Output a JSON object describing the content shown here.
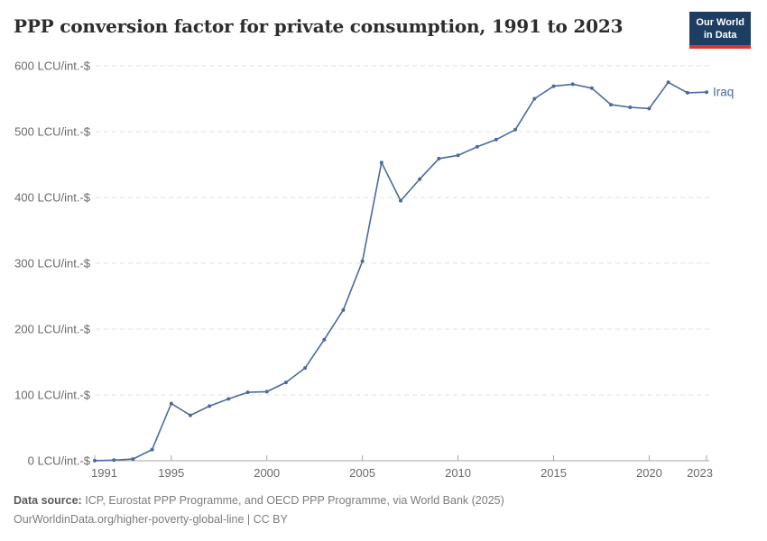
{
  "header": {
    "title": "PPP conversion factor for private consumption, 1991 to 2023",
    "logo": {
      "line1": "Our World",
      "line2": "in Data"
    }
  },
  "chart_data": {
    "type": "line",
    "title": "PPP conversion factor for private consumption, 1991 to 2023",
    "xlabel": "",
    "ylabel": "",
    "xlim": [
      1991,
      2023
    ],
    "ylim": [
      0,
      600
    ],
    "x_ticks": [
      1991,
      1995,
      2000,
      2005,
      2010,
      2015,
      2020,
      2023
    ],
    "y_ticks": [
      0,
      100,
      200,
      300,
      400,
      500,
      600
    ],
    "y_tick_suffix": " LCU/int.-$",
    "grid": "horizontal-dashed",
    "legend_position": "end-of-line-label",
    "series": [
      {
        "name": "Iraq",
        "color": "#4C6A9C",
        "x": [
          1991,
          1992,
          1993,
          1994,
          1995,
          1996,
          1997,
          1998,
          1999,
          2000,
          2001,
          2002,
          2003,
          2004,
          2005,
          2006,
          2007,
          2008,
          2009,
          2010,
          2011,
          2012,
          2013,
          2014,
          2015,
          2016,
          2017,
          2018,
          2019,
          2020,
          2021,
          2022,
          2023
        ],
        "values": [
          0.2,
          0.9,
          2.6,
          17,
          87,
          69,
          83,
          94,
          104,
          105,
          119,
          141,
          184,
          229,
          303,
          453,
          395,
          428,
          459,
          464,
          477,
          488,
          503,
          550,
          569,
          572,
          566,
          541,
          537,
          535,
          575,
          559,
          560
        ]
      }
    ]
  },
  "footer": {
    "source_label": "Data source:",
    "source_text": "ICP, Eurostat PPP Programme, and OECD PPP Programme, via World Bank (2025)",
    "attribution": "OurWorldinData.org/higher-poverty-global-line | CC BY"
  },
  "colors": {
    "line": "#4C6A9C",
    "logo_bg": "#1d3d63",
    "logo_underline": "#d7372e",
    "grid": "#e2e2e2",
    "axis": "#a5a5a5",
    "tick_text": "#69696f",
    "title_text": "#2d2d2d",
    "footer_text": "#7c7c7c"
  }
}
